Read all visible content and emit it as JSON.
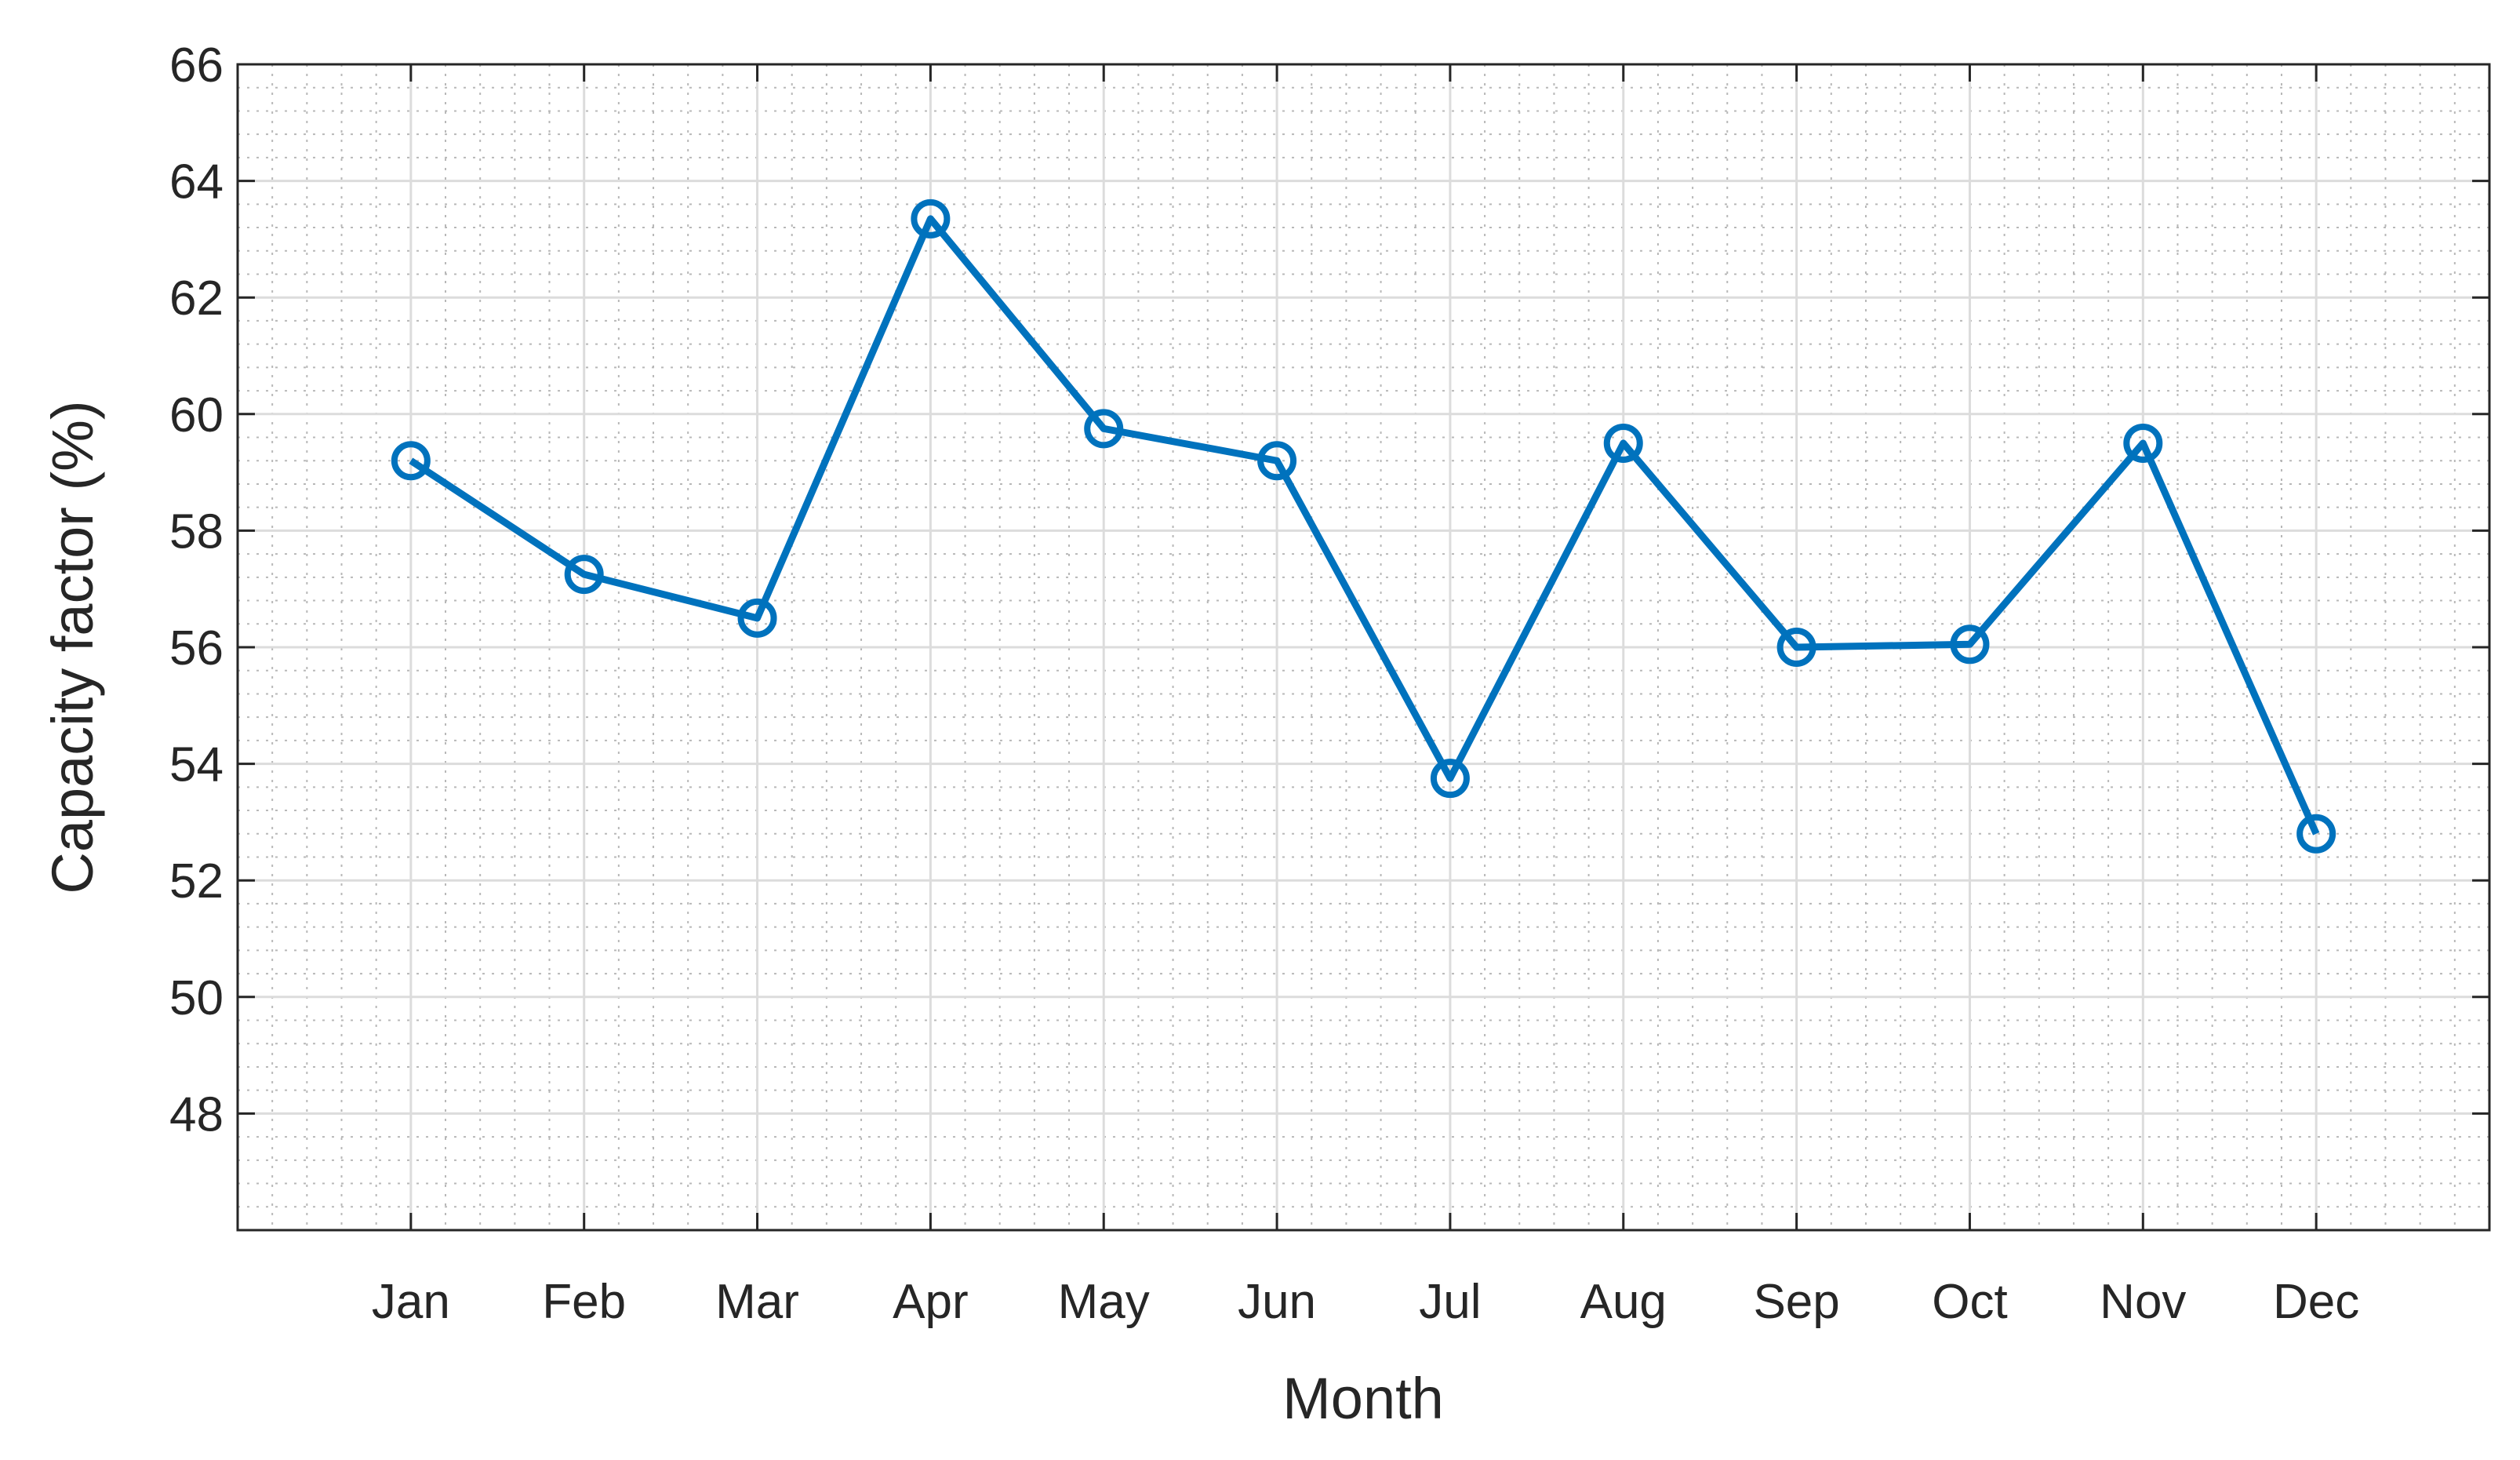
{
  "chart_data": {
    "type": "line",
    "x_label": "Month",
    "y_label": "Capacity factor (%)",
    "categories": [
      "Jan",
      "Feb",
      "Mar",
      "Apr",
      "May",
      "Jun",
      "Jul",
      "Aug",
      "Sep",
      "Oct",
      "Nov",
      "Dec"
    ],
    "series": [
      {
        "color": "#0072bd",
        "marker": "circle",
        "values": [
          59.2,
          57.25,
          56.5,
          63.35,
          59.75,
          59.2,
          53.75,
          59.5,
          56.0,
          56.05,
          59.5,
          52.8
        ]
      }
    ],
    "ylim": [
      46,
      66
    ],
    "yticks": [
      48,
      50,
      52,
      54,
      56,
      58,
      60,
      62,
      64,
      66
    ],
    "grid": true,
    "minor_grid": true
  }
}
